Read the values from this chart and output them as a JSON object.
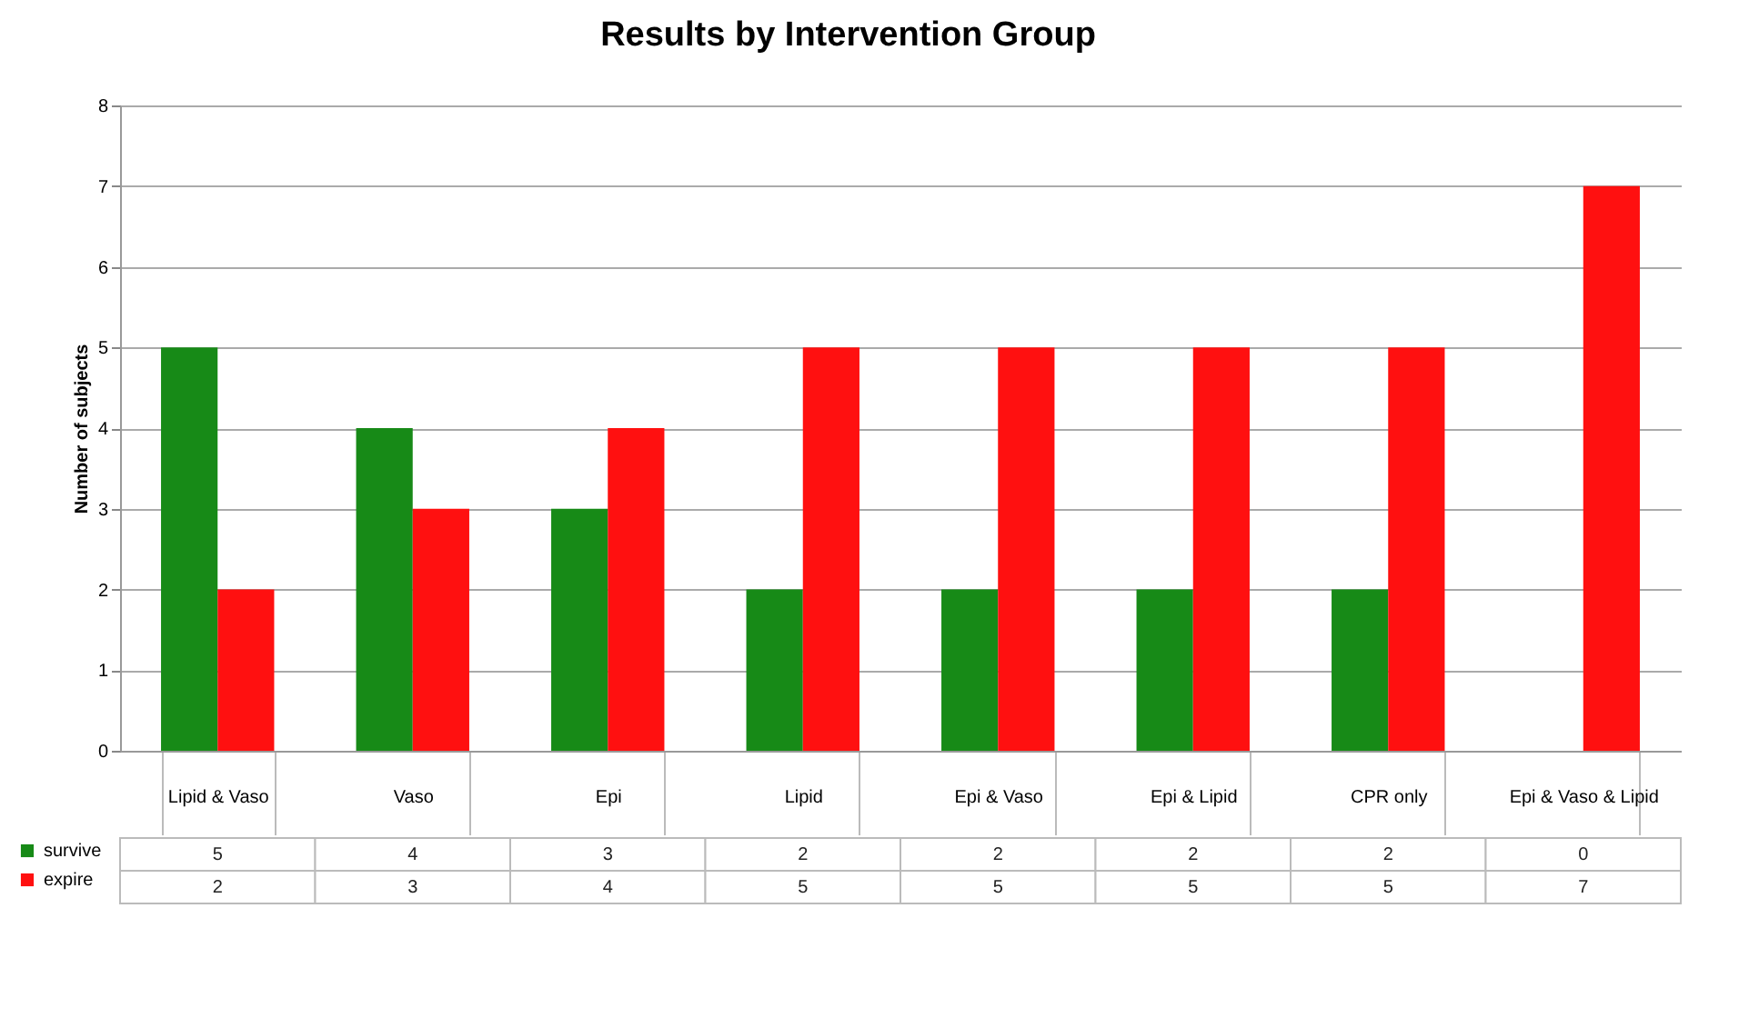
{
  "chart_data": {
    "type": "bar",
    "title": "Results by Intervention Group",
    "ylabel": "Number of subjects",
    "categories": [
      "Lipid & Vaso",
      "Vaso",
      "Epi",
      "Lipid",
      "Epi & Vaso",
      "Epi & Lipid",
      "CPR only",
      "Epi & Vaso & Lipid"
    ],
    "series": [
      {
        "name": "survive",
        "color": "#178a17",
        "values": [
          5,
          4,
          3,
          2,
          2,
          2,
          2,
          0
        ]
      },
      {
        "name": "expire",
        "color": "#ff1010",
        "values": [
          2,
          3,
          4,
          5,
          5,
          5,
          5,
          7
        ]
      }
    ],
    "ylim": [
      0,
      8
    ],
    "yticks": [
      0,
      1,
      2,
      3,
      4,
      5,
      6,
      7,
      8
    ],
    "grid": "y",
    "legend": "bottom left",
    "data_labels": true
  }
}
